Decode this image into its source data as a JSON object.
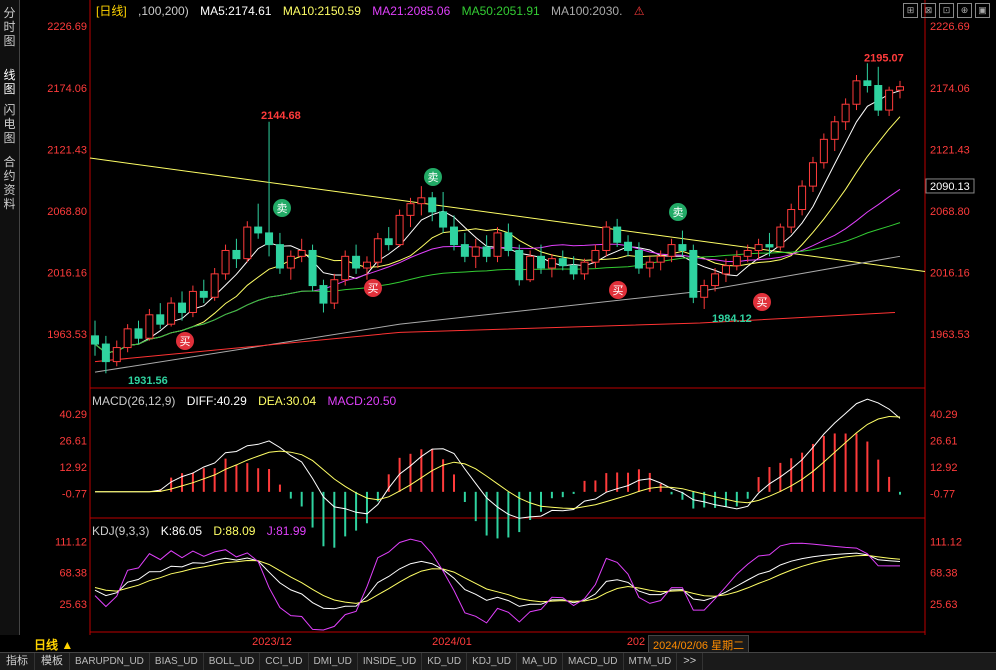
{
  "sidebar": {
    "tabs": [
      {
        "label": "分时图",
        "active": false
      },
      {
        "label": "线图",
        "active": true
      },
      {
        "label": "闪电图",
        "active": false
      },
      {
        "label": "合约资料",
        "active": false
      }
    ]
  },
  "header": {
    "period": "[日线]",
    "ma_params": ",100,200)",
    "ma5": "MA5:2174.61",
    "ma10": "MA10:2150.59",
    "ma21": "MA21:2085.06",
    "ma50": "MA50:2051.91",
    "ma100": "MA100:2030.",
    "warning_icon": "warning-icon"
  },
  "macd_header": {
    "name": "MACD(26,12,9)",
    "diff": "DIFF:40.29",
    "dea": "DEA:30.04",
    "macd": "MACD:20.50"
  },
  "kdj_header": {
    "name": "KDJ(9,3,3)",
    "k": "K:86.05",
    "d": "D:88.09",
    "j": "J:81.99"
  },
  "footer": {
    "period_label": "日线 ▲",
    "hover_date": "2024/02/06 星期二",
    "tabs": [
      "指标",
      "模板"
    ],
    "indicators": [
      "BARUPDN_UD",
      "BIAS_UD",
      "BOLL_UD",
      "CCI_UD",
      "DMI_UD",
      "INSIDE_UD",
      "KD_UD",
      "KDJ_UD",
      "MA_UD",
      "MACD_UD",
      "MTM_UD"
    ],
    "more": ">>"
  },
  "colors": {
    "up": "#ff3b3b",
    "down": "#2fd3a0",
    "ma5": "#ffffff",
    "ma10": "#ffff66",
    "ma21": "#e040fb",
    "ma50": "#33cc33",
    "ma100": "#aaaaaa",
    "ma200": "#ff3333",
    "trendline": "#ffff66"
  },
  "chart_data": [
    {
      "type": "candlestick",
      "title": "",
      "y_ticks": [
        "2226.69",
        "2174.06",
        "2121.43",
        "2068.80",
        "2016.16",
        "1963.53"
      ],
      "ylim": [
        1920,
        2232
      ],
      "x_ticks": [
        "2023/12",
        "2024/01",
        "202"
      ],
      "current_price": "2090.13",
      "annotations": {
        "high_label": "2195.07",
        "peak_label": "2144.68",
        "low_label_1": "1931.56",
        "low_label_2": "1984.12",
        "buy": "买",
        "sell": "卖"
      },
      "candles": [
        [
          1962,
          1975,
          1945,
          1955
        ],
        [
          1955,
          1962,
          1930,
          1940
        ],
        [
          1940,
          1958,
          1936,
          1952
        ],
        [
          1952,
          1972,
          1948,
          1968
        ],
        [
          1968,
          1975,
          1955,
          1960
        ],
        [
          1960,
          1985,
          1958,
          1980
        ],
        [
          1980,
          1990,
          1968,
          1972
        ],
        [
          1972,
          1995,
          1970,
          1990
        ],
        [
          1990,
          2000,
          1975,
          1982
        ],
        [
          1982,
          2005,
          1978,
          2000
        ],
        [
          2000,
          2010,
          1990,
          1995
        ],
        [
          1995,
          2020,
          1992,
          2015
        ],
        [
          2015,
          2040,
          2010,
          2035
        ],
        [
          2035,
          2045,
          2020,
          2028
        ],
        [
          2028,
          2060,
          2025,
          2055
        ],
        [
          2055,
          2075,
          2045,
          2050
        ],
        [
          2050,
          2145,
          2030,
          2040
        ],
        [
          2040,
          2050,
          2015,
          2020
        ],
        [
          2020,
          2035,
          2010,
          2030
        ],
        [
          2030,
          2045,
          2025,
          2035
        ],
        [
          2035,
          2040,
          2000,
          2005
        ],
        [
          2005,
          2010,
          1982,
          1990
        ],
        [
          1990,
          2015,
          1985,
          2010
        ],
        [
          2010,
          2035,
          2005,
          2030
        ],
        [
          2030,
          2040,
          2015,
          2020
        ],
        [
          2020,
          2030,
          2010,
          2025
        ],
        [
          2025,
          2050,
          2020,
          2045
        ],
        [
          2045,
          2055,
          2035,
          2040
        ],
        [
          2040,
          2070,
          2038,
          2065
        ],
        [
          2065,
          2080,
          2055,
          2075
        ],
        [
          2075,
          2090,
          2065,
          2080
        ],
        [
          2080,
          2085,
          2060,
          2068
        ],
        [
          2068,
          2085,
          2050,
          2055
        ],
        [
          2055,
          2065,
          2035,
          2040
        ],
        [
          2040,
          2050,
          2025,
          2030
        ],
        [
          2030,
          2045,
          2020,
          2038
        ],
        [
          2038,
          2048,
          2025,
          2030
        ],
        [
          2030,
          2055,
          2025,
          2050
        ],
        [
          2050,
          2058,
          2030,
          2035
        ],
        [
          2035,
          2040,
          2005,
          2010
        ],
        [
          2010,
          2035,
          2008,
          2030
        ],
        [
          2030,
          2040,
          2015,
          2020
        ],
        [
          2020,
          2032,
          2012,
          2028
        ],
        [
          2028,
          2035,
          2018,
          2022
        ],
        [
          2022,
          2030,
          2010,
          2015
        ],
        [
          2015,
          2028,
          2010,
          2025
        ],
        [
          2025,
          2040,
          2020,
          2035
        ],
        [
          2035,
          2060,
          2030,
          2055
        ],
        [
          2055,
          2062,
          2038,
          2042
        ],
        [
          2042,
          2048,
          2030,
          2035
        ],
        [
          2035,
          2042,
          2015,
          2020
        ],
        [
          2020,
          2030,
          2012,
          2025
        ],
        [
          2025,
          2035,
          2018,
          2030
        ],
        [
          2030,
          2045,
          2025,
          2040
        ],
        [
          2040,
          2052,
          2030,
          2035
        ],
        [
          2035,
          2040,
          1990,
          1995
        ],
        [
          1995,
          2010,
          1985,
          2005
        ],
        [
          2005,
          2020,
          2000,
          2015
        ],
        [
          2015,
          2028,
          2008,
          2022
        ],
        [
          2022,
          2035,
          2018,
          2030
        ],
        [
          2030,
          2040,
          2025,
          2035
        ],
        [
          2035,
          2045,
          2028,
          2040
        ],
        [
          2040,
          2050,
          2030,
          2038
        ],
        [
          2038,
          2058,
          2035,
          2055
        ],
        [
          2055,
          2075,
          2050,
          2070
        ],
        [
          2070,
          2095,
          2065,
          2090
        ],
        [
          2090,
          2115,
          2085,
          2110
        ],
        [
          2110,
          2135,
          2105,
          2130
        ],
        [
          2130,
          2150,
          2120,
          2145
        ],
        [
          2145,
          2165,
          2138,
          2160
        ],
        [
          2160,
          2185,
          2155,
          2180
        ],
        [
          2180,
          2195,
          2170,
          2176
        ],
        [
          2176,
          2192,
          2150,
          2155
        ],
        [
          2155,
          2175,
          2150,
          2172
        ],
        [
          2172,
          2180,
          2165,
          2175
        ]
      ]
    },
    {
      "type": "bar+line",
      "title": "MACD",
      "y_ticks": [
        "40.29",
        "26.61",
        "12.92",
        "-0.77"
      ],
      "ylim": [
        -12,
        45
      ]
    },
    {
      "type": "line",
      "title": "KDJ",
      "y_ticks": [
        "111.12",
        "68.38",
        "25.63"
      ],
      "ylim": [
        -10,
        120
      ]
    }
  ]
}
